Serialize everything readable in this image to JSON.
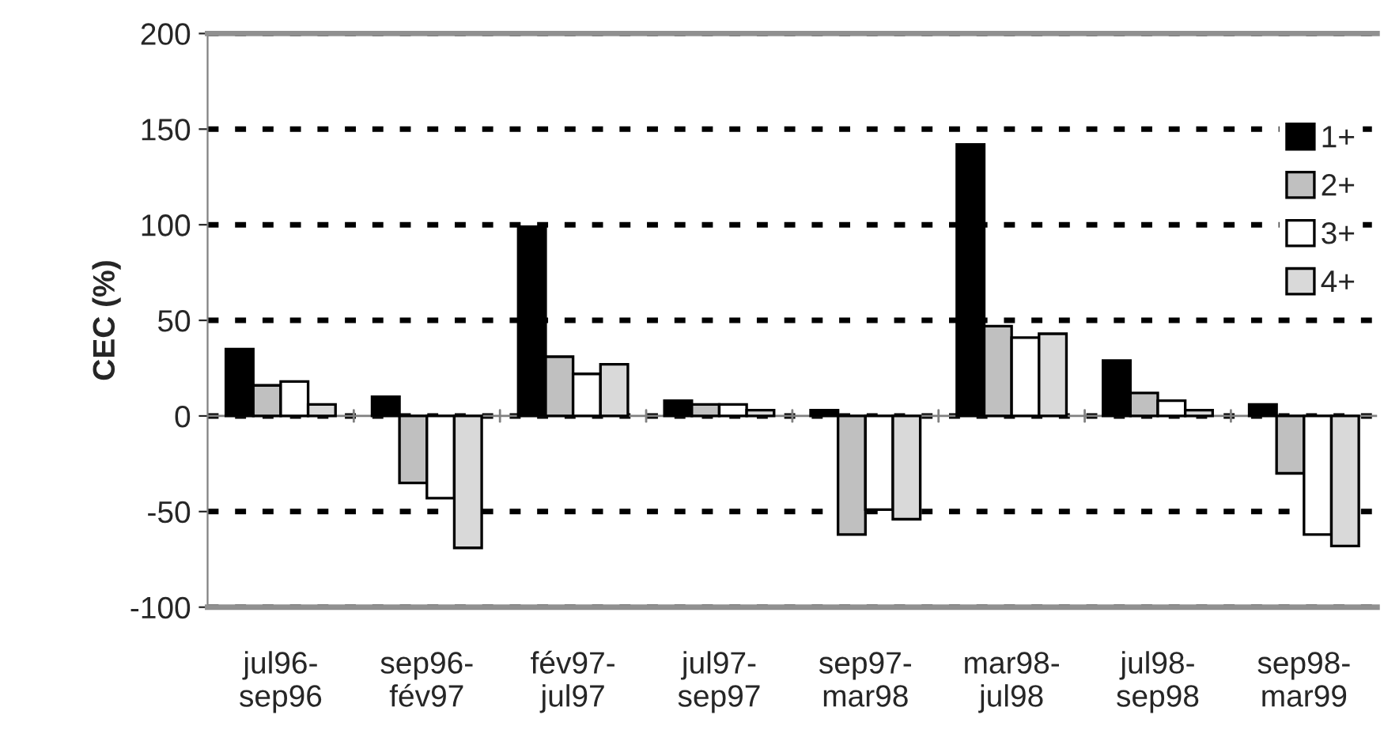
{
  "chart_data": {
    "type": "bar",
    "ylabel": "CEC (%)",
    "categories": [
      "jul96-\nsep96",
      "sep96-\nfév97",
      "fév97-\njul97",
      "jul97-\nsep97",
      "sep97-\nmar98",
      "mar98-\njul98",
      "jul98-\nsep98",
      "sep98-\nmar99"
    ],
    "series": [
      {
        "name": "1+",
        "color": "#000000",
        "values": [
          35,
          10,
          99,
          8,
          3,
          142,
          29,
          6
        ]
      },
      {
        "name": "2+",
        "color": "#c0c0c0",
        "values": [
          16,
          -35,
          31,
          6,
          -62,
          47,
          12,
          -30
        ]
      },
      {
        "name": "3+",
        "color": "#ffffff",
        "values": [
          18,
          -43,
          22,
          6,
          -49,
          41,
          8,
          -62
        ]
      },
      {
        "name": "4+",
        "color": "#d9d9d9",
        "values": [
          6,
          -69,
          27,
          3,
          -54,
          43,
          3,
          -68
        ]
      }
    ],
    "ylim": [
      -100,
      200
    ],
    "yticks": [
      -100,
      -50,
      0,
      50,
      100,
      150,
      200
    ],
    "grid": "y",
    "legend": "top right"
  }
}
